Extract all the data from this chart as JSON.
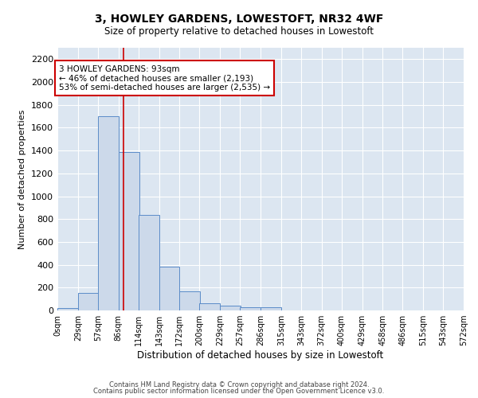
{
  "title": "3, HOWLEY GARDENS, LOWESTOFT, NR32 4WF",
  "subtitle": "Size of property relative to detached houses in Lowestoft",
  "xlabel": "Distribution of detached houses by size in Lowestoft",
  "ylabel": "Number of detached properties",
  "bar_color": "#ccd9ea",
  "bar_edge_color": "#5b8cc8",
  "background_color": "#dce6f1",
  "grid_color": "#ffffff",
  "annotation_box_color": "#cc0000",
  "property_line_color": "#cc0000",
  "property_value": 93,
  "annotation_text_line1": "3 HOWLEY GARDENS: 93sqm",
  "annotation_text_line2": "← 46% of detached houses are smaller (2,193)",
  "annotation_text_line3": "53% of semi-detached houses are larger (2,535) →",
  "bin_edges": [
    0,
    29,
    57,
    86,
    114,
    143,
    172,
    200,
    229,
    257,
    286,
    315,
    343,
    372,
    400,
    429,
    458,
    486,
    515,
    543,
    572
  ],
  "bin_labels": [
    "0sqm",
    "29sqm",
    "57sqm",
    "86sqm",
    "114sqm",
    "143sqm",
    "172sqm",
    "200sqm",
    "229sqm",
    "257sqm",
    "286sqm",
    "315sqm",
    "343sqm",
    "372sqm",
    "400sqm",
    "429sqm",
    "458sqm",
    "486sqm",
    "515sqm",
    "543sqm",
    "572sqm"
  ],
  "bar_heights": [
    20,
    155,
    1700,
    1390,
    835,
    385,
    165,
    65,
    40,
    30,
    30,
    0,
    0,
    0,
    0,
    0,
    0,
    0,
    0,
    0
  ],
  "ylim": [
    0,
    2300
  ],
  "yticks": [
    0,
    200,
    400,
    600,
    800,
    1000,
    1200,
    1400,
    1600,
    1800,
    2000,
    2200
  ],
  "footer_line1": "Contains HM Land Registry data © Crown copyright and database right 2024.",
  "footer_line2": "Contains public sector information licensed under the Open Government Licence v3.0."
}
